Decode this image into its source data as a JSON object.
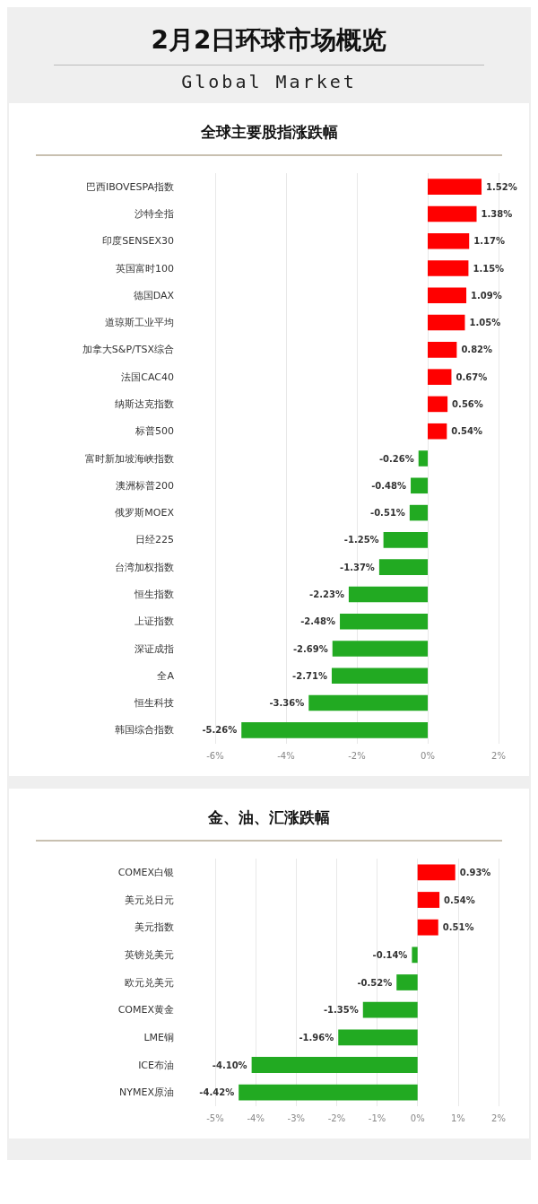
{
  "chart_data": [
    {
      "type": "other",
      "title": "2月2日环球市场概览",
      "subtitle": "Global Market"
    },
    {
      "type": "bar",
      "orientation": "horizontal",
      "title": "全球主要股指涨跌幅",
      "categories": [
        "巴西IBOVESPA指数",
        "沙特全指",
        "印度SENSEX30",
        "英国富时100",
        "德国DAX",
        "道琼斯工业平均",
        "加拿大S&P/TSX综合",
        "法国CAC40",
        "纳斯达克指数",
        "标普500",
        "富时新加坡海峡指数",
        "澳洲标普200",
        "俄罗斯MOEX",
        "日经225",
        "台湾加权指数",
        "恒生指数",
        "上证指数",
        "深证成指",
        "全A",
        "恒生科技",
        "韩国综合指数"
      ],
      "values": [
        1.52,
        1.38,
        1.17,
        1.15,
        1.09,
        1.05,
        0.82,
        0.67,
        0.56,
        0.54,
        -0.26,
        -0.48,
        -0.51,
        -1.25,
        -1.37,
        -2.23,
        -2.48,
        -2.69,
        -2.71,
        -3.36,
        -5.26
      ],
      "value_labels": [
        "1.52%",
        "1.38%",
        "1.17%",
        "1.15%",
        "1.09%",
        "1.05%",
        "0.82%",
        "0.67%",
        "0.56%",
        "0.54%",
        "-0.26%",
        "-0.48%",
        "-0.51%",
        "-1.25%",
        "-1.37%",
        "-2.23%",
        "-2.48%",
        "-2.69%",
        "-2.71%",
        "-3.36%",
        "-5.26%"
      ],
      "colors": [
        "#ff0000",
        "#ff0000",
        "#ff0000",
        "#ff0000",
        "#ff0000",
        "#ff0000",
        "#ff0000",
        "#ff0000",
        "#ff0000",
        "#ff0000",
        "#22aa22",
        "#22aa22",
        "#22aa22",
        "#22aa22",
        "#22aa22",
        "#22aa22",
        "#22aa22",
        "#22aa22",
        "#22aa22",
        "#22aa22",
        "#22aa22"
      ],
      "xlim": [
        -6,
        2
      ],
      "xticks": [
        {
          "value": -6,
          "label": "-6%"
        },
        {
          "value": -4,
          "label": "-4%"
        },
        {
          "value": -2,
          "label": "-2%"
        },
        {
          "value": 0,
          "label": "0%"
        },
        {
          "value": 2,
          "label": "2%"
        }
      ],
      "grid": "x"
    },
    {
      "type": "bar",
      "orientation": "horizontal",
      "title": "金、油、汇涨跌幅",
      "categories": [
        "COMEX白银",
        "美元兑日元",
        "美元指数",
        "英镑兑美元",
        "欧元兑美元",
        "COMEX黄金",
        "LME铜",
        "ICE布油",
        "NYMEX原油"
      ],
      "values": [
        0.93,
        0.54,
        0.51,
        -0.14,
        -0.52,
        -1.35,
        -1.96,
        -4.1,
        -4.42
      ],
      "value_labels": [
        "0.93%",
        "0.54%",
        "0.51%",
        "-0.14%",
        "-0.52%",
        "-1.35%",
        "-1.96%",
        "-4.10%",
        "-4.42%"
      ],
      "colors": [
        "#ff0000",
        "#ff0000",
        "#ff0000",
        "#22aa22",
        "#22aa22",
        "#22aa22",
        "#22aa22",
        "#22aa22",
        "#22aa22"
      ],
      "xlim": [
        -5,
        2
      ],
      "xticks": [
        {
          "value": -5,
          "label": "-5%"
        },
        {
          "value": -4,
          "label": "-4%"
        },
        {
          "value": -3,
          "label": "-3%"
        },
        {
          "value": -2,
          "label": "-2%"
        },
        {
          "value": -1,
          "label": "-1%"
        },
        {
          "value": 0,
          "label": "0%"
        },
        {
          "value": 1,
          "label": "1%"
        },
        {
          "value": 2,
          "label": "2%"
        }
      ],
      "grid": "x"
    }
  ]
}
